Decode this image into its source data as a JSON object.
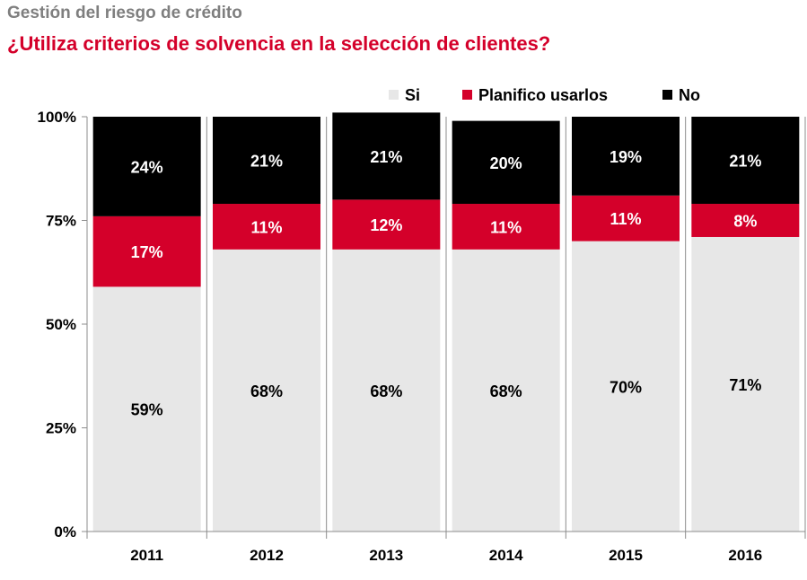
{
  "header": {
    "kicker": "Gestión del riesgo de crédito",
    "title": "¿Utiliza criterios de solvencia en la selección de clientes?"
  },
  "colors": {
    "si": "#e7e7e7",
    "planifico": "#d4002a",
    "no": "#000000",
    "title": "#d4002a",
    "kicker": "#7f7f7f"
  },
  "chart_data": {
    "type": "bar",
    "stacked": true,
    "categories": [
      "2011",
      "2012",
      "2013",
      "2014",
      "2015",
      "2016"
    ],
    "series": [
      {
        "name": "Si",
        "values": [
          59,
          68,
          68,
          68,
          70,
          71
        ],
        "labels": [
          "59%",
          "68%",
          "68%",
          "68%",
          "70%",
          "71%"
        ],
        "color": "#e7e7e7",
        "label_color": "#000000"
      },
      {
        "name": "Planifico usarlos",
        "values": [
          17,
          11,
          12,
          11,
          11,
          8
        ],
        "labels": [
          "17%",
          "11%",
          "12%",
          "11%",
          "11%",
          "8%"
        ],
        "color": "#d4002a",
        "label_color": "#ffffff"
      },
      {
        "name": "No",
        "values": [
          24,
          21,
          21,
          20,
          19,
          21
        ],
        "labels": [
          "24%",
          "21%",
          "21%",
          "20%",
          "19%",
          "21%"
        ],
        "color": "#000000",
        "label_color": "#ffffff"
      }
    ],
    "ylim": [
      0,
      100
    ],
    "yticks": [
      "0%",
      "25%",
      "50%",
      "75%",
      "100%"
    ],
    "legend_position": "top",
    "grid": false
  }
}
